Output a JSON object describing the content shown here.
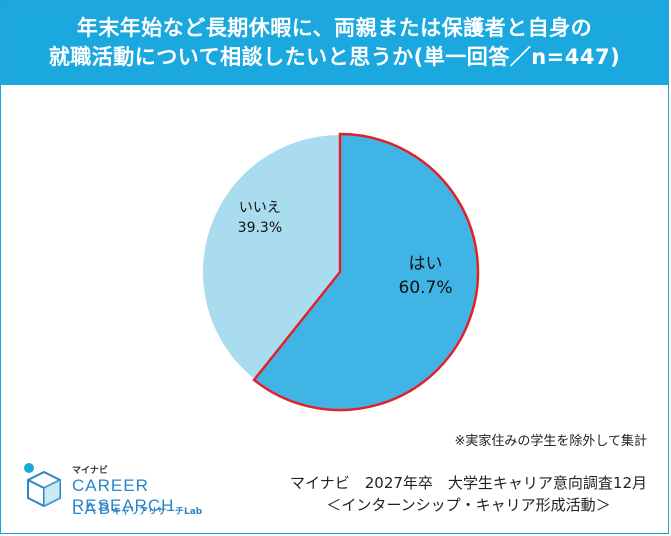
{
  "header": {
    "title_line1": "年末年始など長期休暇に、両親または保護者と自身の",
    "title_line2": "就職活動について相談したいと思うか(単一回答／n=447)"
  },
  "chart_data": {
    "type": "pie",
    "title": "年末年始など長期休暇に、両親または保護者と自身の就職活動について相談したいと思うか(単一回答／n=447)",
    "n": 447,
    "start_angle_deg": 0,
    "direction": "clockwise",
    "slices": [
      {
        "label": "はい",
        "value": 60.7,
        "value_text": "60.7%",
        "color": "#41b4e6",
        "outline": "#e3202a"
      },
      {
        "label": "いいえ",
        "value": 39.3,
        "value_text": "39.3%",
        "color": "#a9dcee",
        "outline": "#ffffff"
      }
    ]
  },
  "footnote": "※実家住みの学生を除外して集計",
  "logo": {
    "brand_ja": "マイナビ",
    "name_line1": "CAREER RESEARCH",
    "name_line2": "LAB",
    "name_sub": "キャリアリサーチLab",
    "colors": {
      "blue": "#2a86c6",
      "light_blue": "#1aa8df"
    }
  },
  "source": {
    "line1": "マイナビ　2027年卒　大学生キャリア意向調査12月",
    "line2": "＜インターンシップ・キャリア形成活動＞"
  }
}
